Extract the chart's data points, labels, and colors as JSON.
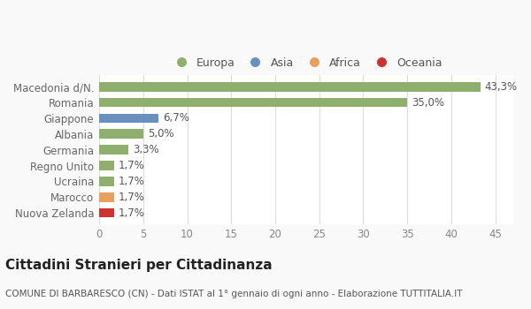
{
  "categories": [
    "Nuova Zelanda",
    "Marocco",
    "Ucraina",
    "Regno Unito",
    "Germania",
    "Albania",
    "Giappone",
    "Romania",
    "Macedonia d/N."
  ],
  "values": [
    1.7,
    1.7,
    1.7,
    1.7,
    3.3,
    5.0,
    6.7,
    35.0,
    43.3
  ],
  "labels": [
    "1,7%",
    "1,7%",
    "1,7%",
    "1,7%",
    "3,3%",
    "5,0%",
    "6,7%",
    "35,0%",
    "43,3%"
  ],
  "colors": [
    "#cc3333",
    "#e8a060",
    "#8faf6f",
    "#8faf6f",
    "#8faf6f",
    "#8faf6f",
    "#6b8fbf",
    "#8faf6f",
    "#8faf6f"
  ],
  "legend_items": [
    {
      "label": "Europa",
      "color": "#8faf6f"
    },
    {
      "label": "Asia",
      "color": "#6b8fbf"
    },
    {
      "label": "Africa",
      "color": "#e8a060"
    },
    {
      "label": "Oceania",
      "color": "#cc3333"
    }
  ],
  "xlim": [
    0,
    47
  ],
  "xticks": [
    0,
    5,
    10,
    15,
    20,
    25,
    30,
    35,
    40,
    45
  ],
  "title": "Cittadini Stranieri per Cittadinanza",
  "subtitle": "COMUNE DI BARBARESCO (CN) - Dati ISTAT al 1° gennaio di ogni anno - Elaborazione TUTTITALIA.IT",
  "background_color": "#f9f9f9",
  "bar_background": "#ffffff",
  "grid_color": "#dddddd"
}
